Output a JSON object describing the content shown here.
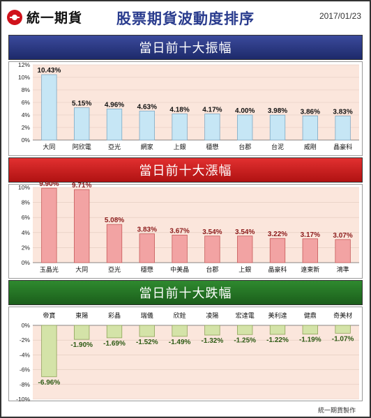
{
  "header": {
    "logo_text": "統一期貨",
    "title": "股票期貨波動度排序",
    "date": "2017/01/23"
  },
  "sections": {
    "amplitude_title": "當日前十大振幅",
    "gain_title": "當日前十大漲幅",
    "loss_title": "當日前十大跌幅"
  },
  "footer": {
    "credit": "統一期貨製作"
  },
  "colors": {
    "blue_bar": "#c6e6f5",
    "red_bar": "#f2a3a3",
    "green_bar": "#d4e3a8",
    "plot_bg": "#fbe6dc",
    "red_label": "#8b1a1a",
    "green_label": "#2d5a14"
  },
  "chart_data": [
    {
      "type": "bar",
      "categories": [
        "大同",
        "阿欣電",
        "亞光",
        "網家",
        "上銀",
        "穩懋",
        "台郡",
        "台泥",
        "威剛",
        "晶豪科"
      ],
      "values": [
        10.43,
        5.15,
        4.96,
        4.63,
        4.18,
        4.17,
        4.0,
        3.98,
        3.86,
        3.83
      ],
      "labels": [
        "10.43%",
        "5.15%",
        "4.96%",
        "4.63%",
        "4.18%",
        "4.17%",
        "4.00%",
        "3.98%",
        "3.86%",
        "3.83%"
      ],
      "yticks": [
        "0%",
        "2%",
        "4%",
        "6%",
        "8%",
        "10%",
        "12%"
      ],
      "ylim": [
        0,
        12
      ]
    },
    {
      "type": "bar",
      "categories": [
        "玉晶光",
        "大同",
        "亞光",
        "穩懋",
        "中美晶",
        "台郡",
        "上銀",
        "晶豪科",
        "遠東新",
        "鴻準"
      ],
      "values": [
        9.9,
        9.71,
        5.08,
        3.83,
        3.67,
        3.54,
        3.54,
        3.22,
        3.17,
        3.07
      ],
      "labels": [
        "9.90%",
        "9.71%",
        "5.08%",
        "3.83%",
        "3.67%",
        "3.54%",
        "3.54%",
        "3.22%",
        "3.17%",
        "3.07%"
      ],
      "yticks": [
        "0%",
        "2%",
        "4%",
        "6%",
        "8%",
        "10%"
      ],
      "ylim": [
        0,
        10
      ]
    },
    {
      "type": "bar",
      "categories": [
        "帝寶",
        "東陽",
        "彩晶",
        "瑞儀",
        "欣銓",
        "凌陽",
        "宏達電",
        "美利達",
        "健鼎",
        "奇美材"
      ],
      "values": [
        -6.96,
        -1.9,
        -1.69,
        -1.52,
        -1.49,
        -1.32,
        -1.25,
        -1.22,
        -1.19,
        -1.07
      ],
      "labels": [
        "-6.96%",
        "-1.90%",
        "-1.69%",
        "-1.52%",
        "-1.49%",
        "-1.32%",
        "-1.25%",
        "-1.22%",
        "-1.19%",
        "-1.07%"
      ],
      "yticks": [
        "0%",
        "-2%",
        "-4%",
        "-6%",
        "-8%",
        "-10%"
      ],
      "ylim": [
        -10,
        0
      ]
    }
  ]
}
